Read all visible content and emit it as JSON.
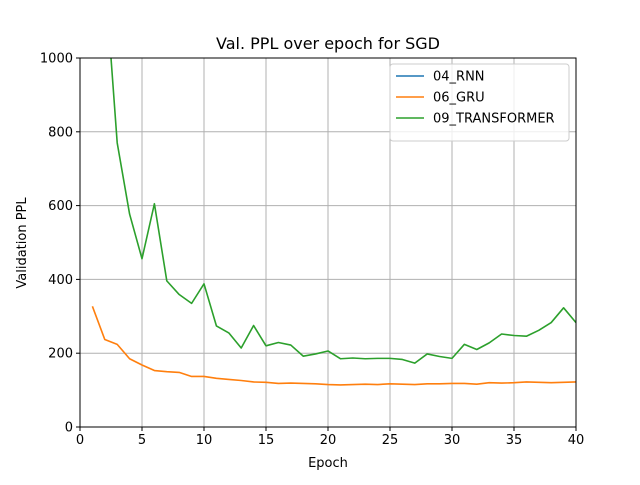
{
  "chart_data": {
    "type": "line",
    "title": "Val. PPL over epoch for SGD",
    "xlabel": "Epoch",
    "ylabel": "Validation PPL",
    "xlim": [
      0,
      40
    ],
    "ylim": [
      0,
      1000
    ],
    "xticks": [
      0,
      5,
      10,
      15,
      20,
      25,
      30,
      35,
      40
    ],
    "yticks": [
      0,
      200,
      400,
      600,
      800,
      1000
    ],
    "grid": true,
    "legend_position": "top-right",
    "series": [
      {
        "name": "04_RNN",
        "color": "#1f77b4",
        "x": [],
        "y": []
      },
      {
        "name": "06_GRU",
        "color": "#ff7f0e",
        "x": [
          1,
          2,
          3,
          4,
          5,
          6,
          7,
          8,
          9,
          10,
          11,
          12,
          13,
          14,
          15,
          16,
          17,
          18,
          19,
          20,
          21,
          22,
          23,
          24,
          25,
          26,
          27,
          28,
          29,
          30,
          31,
          32,
          33,
          34,
          35,
          36,
          37,
          38,
          39,
          40
        ],
        "y": [
          327,
          237,
          224,
          185,
          168,
          153,
          150,
          148,
          137,
          137,
          132,
          129,
          126,
          122,
          121,
          118,
          119,
          118,
          117,
          115,
          114,
          115,
          116,
          115,
          117,
          116,
          115,
          117,
          117,
          118,
          118,
          116,
          120,
          119,
          120,
          122,
          121,
          120,
          121,
          122
        ]
      },
      {
        "name": "09_TRANSFORMER",
        "color": "#2ca02c",
        "x": [
          2.5,
          3,
          4,
          5,
          6,
          7,
          8,
          9,
          10,
          11,
          12,
          13,
          14,
          15,
          16,
          17,
          18,
          19,
          20,
          21,
          22,
          23,
          24,
          25,
          26,
          27,
          28,
          29,
          30,
          31,
          32,
          33,
          34,
          35,
          36,
          37,
          38,
          39,
          40
        ],
        "y": [
          1000,
          770,
          577,
          456,
          605,
          396,
          359,
          335,
          388,
          274,
          255,
          214,
          275,
          220,
          229,
          222,
          192,
          198,
          206,
          185,
          187,
          185,
          186,
          186,
          183,
          173,
          198,
          191,
          186,
          224,
          210,
          228,
          252,
          248,
          246,
          262,
          283,
          323,
          283
        ]
      }
    ]
  }
}
